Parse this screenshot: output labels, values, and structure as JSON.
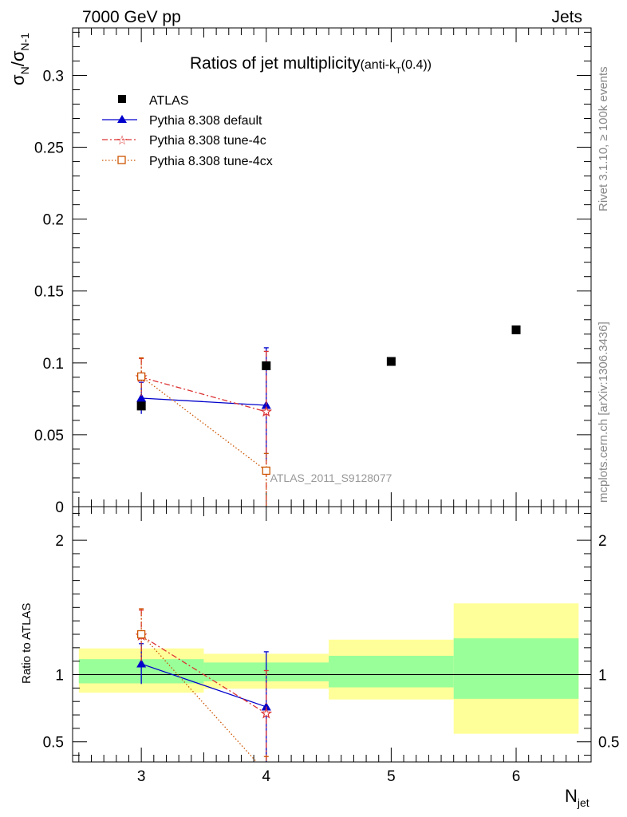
{
  "header": {
    "left": "7000 GeV pp",
    "right": "Jets"
  },
  "title": {
    "main": "Ratios of jet multiplicity",
    "sub_prefix": "(anti-k",
    "sub_sub": "T",
    "sub_suffix": "(0.4))"
  },
  "side_text": {
    "top": "Rivet 3.1.10, ≥ 100k events",
    "bottom": "mcplots.cern.ch [arXiv:1306.3436]"
  },
  "analysis_tag": "ATLAS_2011_S9128077",
  "colors": {
    "atlas": "#000000",
    "default": "#0000cc",
    "tune4c": "#dd3333",
    "tune4cx": "#cc5500",
    "band_inner": "#99ff99",
    "band_outer": "#ffff99"
  },
  "chart_data": [
    {
      "type": "scatter",
      "panel": "main",
      "ylabel_main": "σ",
      "ylabel_sub1": "N",
      "ylabel_mid": "/σ",
      "ylabel_sub2": "N-1",
      "xlim": [
        2.45,
        6.6
      ],
      "ylim": [
        0,
        0.333
      ],
      "yticks": [
        0,
        0.05,
        0.1,
        0.15,
        0.2,
        0.25,
        0.3
      ],
      "ytick_labels": [
        "0",
        "0.05",
        "0.1",
        "0.15",
        "0.2",
        "0.25",
        "0.3"
      ],
      "legend_position": "top-left",
      "series": [
        {
          "name": "ATLAS",
          "key": "atlas",
          "marker": "square",
          "line": "none",
          "x": [
            3,
            4,
            5,
            6
          ],
          "y": [
            0.07,
            0.098,
            0.101,
            0.123
          ]
        },
        {
          "name": "Pythia 8.308 default",
          "key": "default",
          "marker": "triangle",
          "line": "solid",
          "x": [
            3,
            4
          ],
          "y": [
            0.0755,
            0.0705
          ],
          "err_low": [
            0.011,
            0.039
          ],
          "err_high": [
            0.011,
            0.04
          ]
        },
        {
          "name": "Pythia 8.308 tune-4c",
          "key": "tune4c",
          "marker": "star",
          "line": "dashdot",
          "x": [
            3,
            4
          ],
          "y": [
            0.09,
            0.066
          ],
          "err_low": [
            0.013,
            0.066
          ],
          "err_high": [
            0.013,
            0.042
          ]
        },
        {
          "name": "Pythia 8.308 tune-4cx",
          "key": "tune4cx",
          "marker": "open-square",
          "line": "dotted",
          "x": [
            3,
            4
          ],
          "y": [
            0.0905,
            0.025
          ],
          "err_low": [
            0.013,
            0.025
          ],
          "err_high": [
            0.013,
            0.012
          ]
        }
      ]
    },
    {
      "type": "scatter",
      "panel": "ratio",
      "ylabel": "Ratio to ATLAS",
      "xlabel_main": "N",
      "xlabel_sub": "jet",
      "xlim": [
        2.45,
        6.6
      ],
      "ylim": [
        0.35,
        2.25
      ],
      "xticks": [
        3,
        4,
        5,
        6
      ],
      "xtick_labels": [
        "3",
        "4",
        "5",
        "6"
      ],
      "yticks": [
        0.5,
        1,
        2
      ],
      "ytick_labels": [
        "0.5",
        "1",
        "2"
      ],
      "bands": [
        {
          "x0": 2.5,
          "x1": 3.5,
          "inner": [
            0.935,
            1.115
          ],
          "outer": [
            0.865,
            1.195
          ]
        },
        {
          "x0": 3.5,
          "x1": 4.5,
          "inner": [
            0.95,
            1.09
          ],
          "outer": [
            0.895,
            1.155
          ]
        },
        {
          "x0": 4.5,
          "x1": 5.5,
          "inner": [
            0.905,
            1.14
          ],
          "outer": [
            0.815,
            1.26
          ]
        },
        {
          "x0": 5.5,
          "x1": 6.5,
          "inner": [
            0.82,
            1.27
          ],
          "outer": [
            0.56,
            1.53
          ]
        }
      ],
      "series": [
        {
          "name": "Pythia 8.308 default",
          "key": "default",
          "x": [
            3,
            4
          ],
          "y": [
            1.08,
            0.76
          ],
          "err_low": [
            0.15,
            0.41
          ],
          "err_high": [
            0.15,
            0.41
          ]
        },
        {
          "name": "Pythia 8.308 tune-4c",
          "key": "tune4c",
          "x": [
            3,
            4
          ],
          "y": [
            1.29,
            0.71
          ],
          "err_low": [
            0.19,
            0.71
          ],
          "err_high": [
            0.19,
            0.32
          ]
        },
        {
          "name": "Pythia 8.308 tune-4cx",
          "key": "tune4cx",
          "x": [
            3,
            4
          ],
          "y": [
            1.3,
            0.27
          ],
          "err_low": [
            0.19,
            0.27
          ],
          "err_high": [
            0.19,
            0.12
          ]
        }
      ]
    }
  ]
}
